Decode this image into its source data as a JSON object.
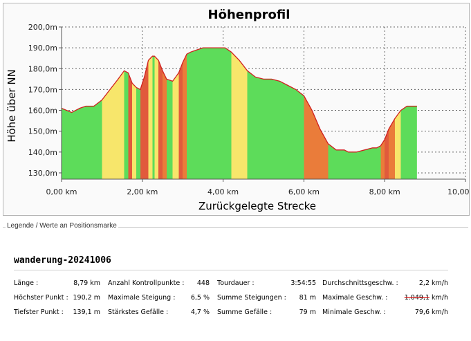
{
  "chart_data": {
    "type": "area",
    "title": "Höhenprofil",
    "xlabel": "Zurückgelegte Strecke",
    "ylabel": "Höhe über NN",
    "xlim": [
      0,
      10
    ],
    "ylim": [
      127,
      200
    ],
    "grid": true,
    "x_ticks": [
      {
        "v": 0,
        "label": "0,00 km"
      },
      {
        "v": 2,
        "label": "2,00 km"
      },
      {
        "v": 4,
        "label": "4,00 km"
      },
      {
        "v": 6,
        "label": "6,00 km"
      },
      {
        "v": 8,
        "label": "8,00 km"
      },
      {
        "v": 10,
        "label": "10,00 km"
      }
    ],
    "y_ticks": [
      {
        "v": 130,
        "label": "130,0m"
      },
      {
        "v": 140,
        "label": "140,0m"
      },
      {
        "v": 150,
        "label": "150,0m"
      },
      {
        "v": 160,
        "label": "160,0m"
      },
      {
        "v": 170,
        "label": "170,0m"
      },
      {
        "v": 180,
        "label": "180,0m"
      },
      {
        "v": 190,
        "label": "190,0m"
      },
      {
        "v": 200,
        "label": "200,0m"
      }
    ],
    "x": [
      0.0,
      0.25,
      0.45,
      0.6,
      0.8,
      1.0,
      1.2,
      1.4,
      1.55,
      1.65,
      1.75,
      1.85,
      1.95,
      2.05,
      2.15,
      2.25,
      2.3,
      2.4,
      2.5,
      2.6,
      2.75,
      2.9,
      3.0,
      3.1,
      3.2,
      3.35,
      3.5,
      3.65,
      3.8,
      3.95,
      4.05,
      4.2,
      4.4,
      4.6,
      4.8,
      5.0,
      5.2,
      5.4,
      5.6,
      5.8,
      6.0,
      6.2,
      6.4,
      6.6,
      6.8,
      7.0,
      7.1,
      7.3,
      7.5,
      7.7,
      7.8,
      7.9,
      8.0,
      8.1,
      8.25,
      8.4,
      8.55,
      8.7,
      8.8
    ],
    "y": [
      161,
      159,
      161,
      162,
      162,
      165,
      170,
      175,
      179,
      178,
      173,
      171,
      170,
      176,
      184,
      186,
      186,
      184,
      179,
      175,
      174,
      178,
      183,
      187,
      188,
      189,
      190,
      190,
      190,
      190,
      190,
      188,
      184,
      179,
      176,
      175,
      175,
      174,
      172,
      170,
      167,
      160,
      151,
      144,
      141,
      141,
      140,
      140,
      141,
      142,
      142,
      143,
      146,
      151,
      156,
      160,
      162,
      162,
      162
    ],
    "gradient_colors": {
      "flat": "#5ddc5a",
      "moderate": "#f7e66b",
      "steep": "#ea7c3a",
      "steepest": "#e15a3c",
      "profile_line": "#d02020"
    }
  },
  "legend": {
    "caption": "Legende / Werte an Positionsmarke",
    "track_name": "wanderung-20241006",
    "stats": [
      [
        {
          "label": "Länge :",
          "value": "8,79 km"
        },
        {
          "label": "Höchster Punkt :",
          "value": "190,2 m"
        },
        {
          "label": "Tiefster Punkt :",
          "value": "139,1 m"
        }
      ],
      [
        {
          "label": "Anzahl Kontrollpunkte :",
          "value": "448"
        },
        {
          "label": "Maximale Steigung :",
          "value": "6,5 %"
        },
        {
          "label": "Stärkstes Gefälle :",
          "value": "4,7 %"
        }
      ],
      [
        {
          "label": "Tourdauer :",
          "value": "3:54:55"
        },
        {
          "label": "Summe Steigungen :",
          "value": "81 m"
        },
        {
          "label": "Summe Gefälle :",
          "value": "79 m"
        }
      ],
      [
        {
          "label": "Durchschnittsgeschw. :",
          "value": "2,2 km/h"
        },
        {
          "label": "Maximale Geschw. :",
          "value": "1.049,1 km/h",
          "struck": "1.049,1"
        },
        {
          "label": "Minimale Geschw. :",
          "value": "79,6 km/h"
        }
      ]
    ]
  }
}
